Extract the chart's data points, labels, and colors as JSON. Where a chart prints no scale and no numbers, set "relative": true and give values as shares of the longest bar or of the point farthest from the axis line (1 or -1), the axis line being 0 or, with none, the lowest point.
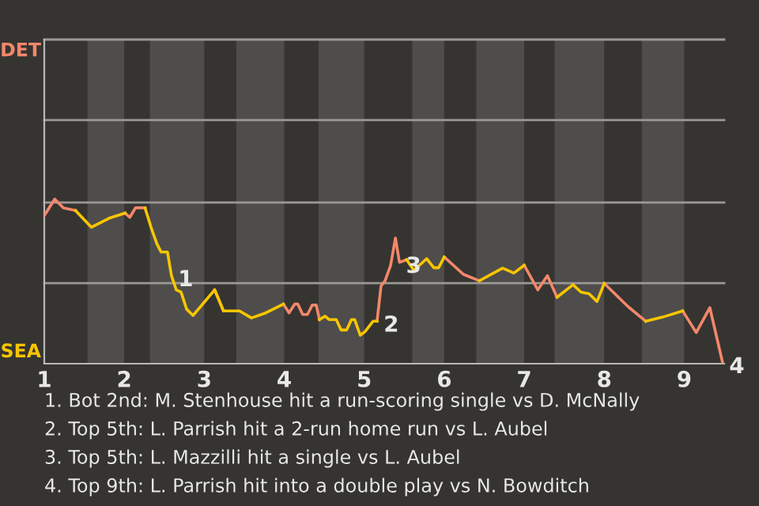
{
  "chart_data": {
    "type": "line",
    "relative": true,
    "x": [
      1.0,
      1.13,
      1.24,
      1.39,
      1.59,
      1.81,
      2.01,
      2.07,
      2.14,
      2.26,
      2.34,
      2.41,
      2.46,
      2.54,
      2.59,
      2.65,
      2.71,
      2.78,
      2.86,
      3.13,
      3.24,
      3.44,
      3.59,
      3.77,
      3.99,
      4.06,
      4.13,
      4.17,
      4.23,
      4.29,
      4.35,
      4.4,
      4.44,
      4.51,
      4.56,
      4.65,
      4.71,
      4.78,
      4.84,
      4.88,
      4.95,
      5.01,
      5.11,
      5.16,
      5.21,
      5.26,
      5.33,
      5.39,
      5.44,
      5.53,
      5.62,
      5.78,
      5.87,
      5.93,
      6.0,
      6.24,
      6.44,
      6.73,
      6.87,
      7.0,
      7.17,
      7.29,
      7.41,
      7.61,
      7.71,
      7.81,
      7.91,
      8.0,
      8.3,
      8.52,
      8.73,
      8.98,
      9.15,
      9.32,
      9.48
    ],
    "series": [
      {
        "color": "#f4876a",
        "values": [
          0.9,
          1,
          0.947,
          0.931,
          null,
          null,
          0.915,
          0.89,
          0.947,
          0.947,
          null,
          null,
          null,
          null,
          null,
          null,
          null,
          null,
          null,
          0.449,
          0.321,
          null,
          null,
          null,
          0.362,
          0.309,
          0.362,
          0.362,
          0.299,
          0.299,
          0.356,
          0.356,
          0.268,
          null,
          null,
          null,
          null,
          null,
          null,
          null,
          null,
          null,
          null,
          0.258,
          0.472,
          0.504,
          0.598,
          0.764,
          0.616,
          0.632,
          null,
          null,
          null,
          null,
          0.648,
          0.543,
          0.504,
          null,
          null,
          0.598,
          0.449,
          0.535,
          0.404,
          null,
          null,
          null,
          null,
          0.488,
          0.346,
          0.258,
          null,
          0.321,
          0.189,
          0.341,
          0.006
        ]
      },
      {
        "color": "#f7c600",
        "values": [
          null,
          null,
          null,
          0.931,
          0.829,
          0.884,
          0.915,
          null,
          null,
          0.947,
          0.821,
          0.726,
          0.679,
          0.679,
          0.535,
          0.449,
          0.435,
          0.331,
          0.293,
          0.449,
          0.321,
          0.321,
          0.278,
          0.309,
          0.362,
          null,
          null,
          null,
          null,
          null,
          null,
          null,
          0.268,
          0.289,
          0.268,
          0.268,
          0.205,
          0.205,
          0.268,
          0.268,
          0.173,
          0.195,
          0.258,
          0.258,
          null,
          null,
          null,
          null,
          null,
          0.632,
          0.567,
          0.638,
          0.583,
          0.583,
          0.648,
          null,
          0.504,
          0.581,
          0.551,
          0.598,
          null,
          null,
          0.404,
          0.48,
          0.435,
          0.425,
          0.378,
          0.488,
          null,
          0.258,
          0.283,
          0.321,
          null,
          null,
          null
        ]
      }
    ],
    "xlim": [
      1,
      9.5
    ],
    "xticks": [
      1,
      2,
      3,
      4,
      5,
      6,
      7,
      8,
      9
    ],
    "ref_lines": [
      {
        "axis": "y",
        "value": 0.49,
        "color": "#9a9996"
      },
      {
        "axis": "y",
        "value": 0.98,
        "color": "#9a9996"
      },
      {
        "axis": "y",
        "value": 1.48,
        "color": "#9a9996"
      },
      {
        "axis": "y",
        "value": 1.97,
        "color": "#9a9996"
      }
    ],
    "line_style": "solid",
    "marker": "none",
    "bands": [
      {
        "axis": "x",
        "from": 1.54,
        "to": 2,
        "color": "#4e4d4b"
      },
      {
        "axis": "x",
        "from": 2.32,
        "to": 3,
        "color": "#4e4d4b"
      },
      {
        "axis": "x",
        "from": 3.4,
        "to": 4,
        "color": "#4e4d4b"
      },
      {
        "axis": "x",
        "from": 4.43,
        "to": 5,
        "color": "#4e4d4b"
      },
      {
        "axis": "x",
        "from": 5.6,
        "to": 6,
        "color": "#4e4d4b"
      },
      {
        "axis": "x",
        "from": 6.4,
        "to": 7,
        "color": "#4e4d4b"
      },
      {
        "axis": "x",
        "from": 7.38,
        "to": 8,
        "color": "#4e4d4b"
      },
      {
        "axis": "x",
        "from": 8.47,
        "to": 9,
        "color": "#4e4d4b"
      }
    ],
    "annotations": [
      "DET",
      "SEA",
      {
        "text": "1",
        "x": 2.59,
        "y": 0.535
      },
      {
        "text": "2",
        "x": 5.16,
        "y": 0.258
      },
      {
        "text": "3",
        "x": 5.44,
        "y": 0.616
      },
      {
        "text": "4",
        "x": 9.48,
        "y": 0.006
      },
      "1. Bot 2nd: M. Stenhouse hit a run-scoring single vs D. McNally",
      "2. Top 5th: L. Parrish hit a 2-run home run vs L. Aubel",
      "3. Top 5th: L. Mazzilli hit a single vs L. Aubel",
      "4. Top 9th: L. Parrish hit into a double play vs N. Bowditch"
    ]
  }
}
